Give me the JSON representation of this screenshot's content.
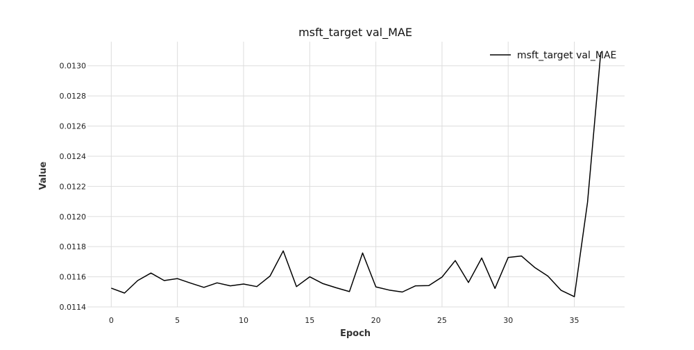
{
  "chart_data": {
    "type": "line",
    "title": "msft_target val_MAE",
    "xlabel": "Epoch",
    "ylabel": "Value",
    "xlim": [
      -1.8,
      38.8
    ],
    "ylim": [
      0.0114,
      0.01316
    ],
    "x_ticks": [
      0,
      5,
      10,
      15,
      20,
      25,
      30,
      35
    ],
    "y_ticks": [
      0.0114,
      0.0116,
      0.0118,
      0.012,
      0.0122,
      0.0124,
      0.0126,
      0.0128,
      0.013
    ],
    "x_tick_labels": [
      "0",
      "5",
      "10",
      "15",
      "20",
      "25",
      "30",
      "35"
    ],
    "y_tick_labels": [
      "0.0114",
      "0.0116",
      "0.0118",
      "0.0120",
      "0.0122",
      "0.0124",
      "0.0126",
      "0.0128",
      "0.0130"
    ],
    "grid": true,
    "legend_position": "top-right",
    "series": [
      {
        "name": "msft_target val_MAE",
        "color": "#000000",
        "x": [
          0,
          1,
          2,
          3,
          4,
          5,
          6,
          7,
          8,
          9,
          10,
          11,
          12,
          13,
          14,
          15,
          16,
          17,
          18,
          19,
          20,
          21,
          22,
          23,
          24,
          25,
          26,
          27,
          28,
          29,
          30,
          31,
          32,
          33,
          34,
          35,
          36,
          37
        ],
        "values": [
          0.011525,
          0.011492,
          0.011575,
          0.011625,
          0.011575,
          0.011588,
          0.011558,
          0.01153,
          0.01156,
          0.01154,
          0.011552,
          0.011535,
          0.011605,
          0.011772,
          0.011535,
          0.0116,
          0.011555,
          0.011527,
          0.011502,
          0.011758,
          0.011533,
          0.011512,
          0.011499,
          0.01154,
          0.011542,
          0.011598,
          0.011708,
          0.011562,
          0.011725,
          0.011523,
          0.011728,
          0.011738,
          0.011662,
          0.011605,
          0.01151,
          0.011468,
          0.012095,
          0.01309
        ]
      }
    ]
  }
}
